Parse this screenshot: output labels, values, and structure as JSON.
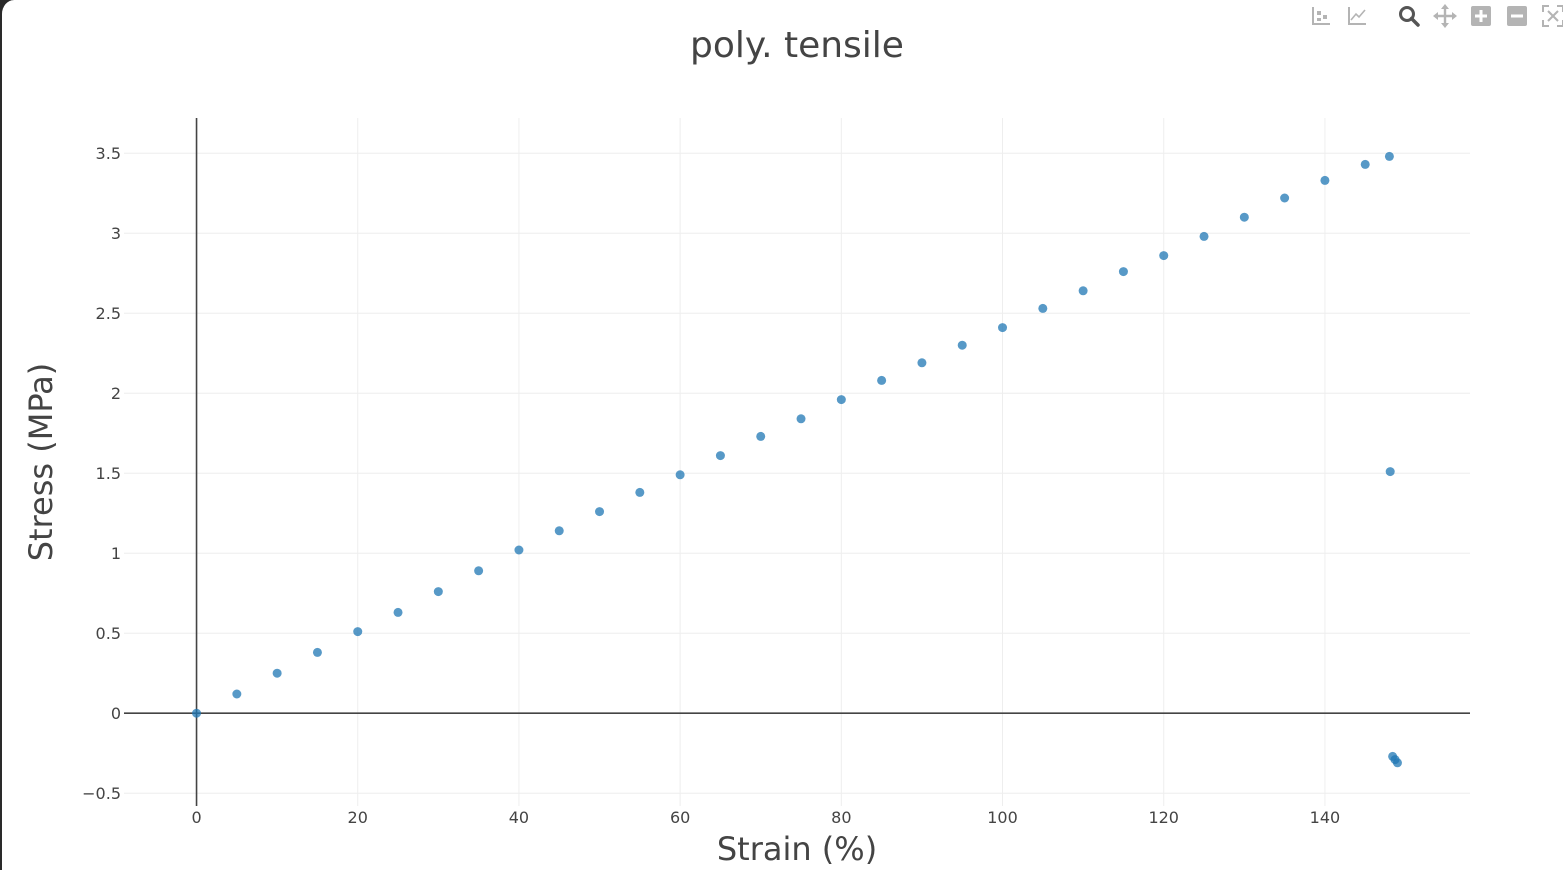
{
  "modebar": {
    "buttons": [
      {
        "name": "compare-data-icon",
        "title": "Compare data on hover"
      },
      {
        "name": "closest-data-icon",
        "title": "Show closest data on hover"
      },
      {
        "name": "zoom-icon",
        "title": "Zoom"
      },
      {
        "name": "pan-icon",
        "title": "Pan"
      },
      {
        "name": "zoom-in-icon",
        "title": "Zoom in"
      },
      {
        "name": "zoom-out-icon",
        "title": "Zoom out"
      },
      {
        "name": "autoscale-icon",
        "title": "Autoscale"
      }
    ],
    "icon_color": "#b4b4b4",
    "active_color": "#555555"
  },
  "chart_data": {
    "type": "scatter",
    "title": "poly. tensile",
    "xlabel": "Strain (%)",
    "ylabel": "Stress (MPa)",
    "xlim": [
      -9,
      158
    ],
    "ylim": [
      -0.58,
      3.72
    ],
    "xticks": [
      0,
      20,
      40,
      60,
      80,
      100,
      120,
      140
    ],
    "yticks": [
      -0.5,
      0,
      0.5,
      1,
      1.5,
      2,
      2.5,
      3,
      3.5
    ],
    "xtick_labels": [
      "0",
      "20",
      "40",
      "60",
      "80",
      "100",
      "120",
      "140"
    ],
    "ytick_labels": [
      "−0.5",
      "0",
      "0.5",
      "1",
      "1.5",
      "2",
      "2.5",
      "3",
      "3.5"
    ],
    "grid": true,
    "zeroline": true,
    "marker_color": "#1f77b4",
    "series": [
      {
        "x": [
          0,
          5,
          10,
          15,
          20,
          25,
          30,
          35,
          40,
          45,
          50,
          55,
          60,
          65,
          70,
          75,
          80,
          85,
          90,
          95,
          100,
          105,
          110,
          115,
          120,
          125,
          130,
          135,
          140,
          145,
          148,
          148.1,
          148.4,
          148.7,
          149.0
        ],
        "y": [
          0,
          0.12,
          0.25,
          0.38,
          0.51,
          0.63,
          0.76,
          0.89,
          1.02,
          1.14,
          1.26,
          1.38,
          1.49,
          1.61,
          1.73,
          1.84,
          1.96,
          2.08,
          2.19,
          2.3,
          2.41,
          2.53,
          2.64,
          2.76,
          2.86,
          2.98,
          3.1,
          3.22,
          3.33,
          3.43,
          3.48,
          1.51,
          -0.27,
          -0.29,
          -0.31
        ]
      }
    ]
  }
}
